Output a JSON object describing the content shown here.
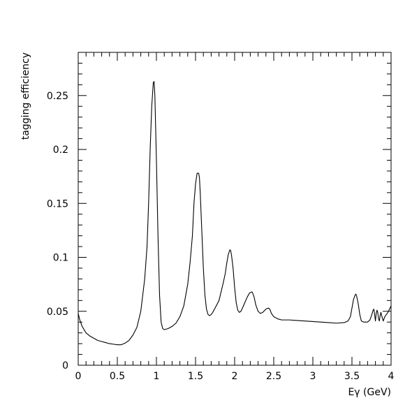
{
  "chart_data": {
    "type": "line",
    "title": "",
    "xlabel": "Eγ (GeV)",
    "ylabel": "tagging efficiency",
    "xlim": [
      0,
      4
    ],
    "ylim": [
      0,
      0.29
    ],
    "grid": false,
    "x_ticks": [
      0,
      0.5,
      1,
      1.5,
      2,
      2.5,
      3,
      3.5,
      4
    ],
    "x_tick_labels": [
      "0",
      "0.5",
      "1",
      "1.5",
      "2",
      "2.5",
      "3",
      "3.5",
      "4"
    ],
    "y_ticks": [
      0,
      0.05,
      0.1,
      0.15,
      0.2,
      0.25
    ],
    "y_tick_labels": [
      "0",
      "0.05",
      "0.1",
      "0.15",
      "0.2",
      "0.25"
    ],
    "series": [
      {
        "name": "",
        "x": [
          0.0,
          0.02,
          0.05,
          0.1,
          0.15,
          0.2,
          0.25,
          0.3,
          0.35,
          0.4,
          0.45,
          0.5,
          0.55,
          0.6,
          0.65,
          0.7,
          0.75,
          0.8,
          0.85,
          0.88,
          0.9,
          0.92,
          0.94,
          0.96,
          0.97,
          0.98,
          1.0,
          1.02,
          1.04,
          1.06,
          1.08,
          1.1,
          1.15,
          1.2,
          1.25,
          1.3,
          1.35,
          1.4,
          1.43,
          1.46,
          1.48,
          1.5,
          1.52,
          1.54,
          1.55,
          1.56,
          1.58,
          1.6,
          1.62,
          1.64,
          1.66,
          1.68,
          1.7,
          1.72,
          1.75,
          1.8,
          1.85,
          1.88,
          1.9,
          1.92,
          1.94,
          1.95,
          1.96,
          1.98,
          2.0,
          2.02,
          2.04,
          2.06,
          2.08,
          2.1,
          2.13,
          2.16,
          2.19,
          2.22,
          2.23,
          2.25,
          2.27,
          2.3,
          2.33,
          2.36,
          2.4,
          2.43,
          2.45,
          2.47,
          2.5,
          2.55,
          2.6,
          2.7,
          2.8,
          2.9,
          3.0,
          3.1,
          3.2,
          3.3,
          3.4,
          3.45,
          3.48,
          3.5,
          3.52,
          3.54,
          3.55,
          3.56,
          3.58,
          3.6,
          3.62,
          3.65,
          3.7,
          3.73,
          3.75,
          3.77,
          3.78,
          3.79,
          3.8,
          3.81,
          3.82,
          3.83,
          3.84,
          3.85,
          3.86,
          3.87,
          3.88,
          3.9,
          3.92,
          3.94,
          3.96,
          3.98,
          4.0
        ],
        "y": [
          0.048,
          0.042,
          0.036,
          0.03,
          0.027,
          0.025,
          0.023,
          0.022,
          0.021,
          0.02,
          0.0195,
          0.019,
          0.019,
          0.0205,
          0.023,
          0.028,
          0.035,
          0.05,
          0.08,
          0.11,
          0.15,
          0.2,
          0.24,
          0.262,
          0.263,
          0.25,
          0.19,
          0.12,
          0.065,
          0.04,
          0.034,
          0.033,
          0.034,
          0.036,
          0.039,
          0.045,
          0.055,
          0.075,
          0.095,
          0.12,
          0.15,
          0.168,
          0.178,
          0.178,
          0.174,
          0.16,
          0.125,
          0.09,
          0.065,
          0.052,
          0.047,
          0.046,
          0.047,
          0.049,
          0.053,
          0.06,
          0.075,
          0.085,
          0.095,
          0.103,
          0.107,
          0.106,
          0.102,
          0.09,
          0.072,
          0.058,
          0.051,
          0.049,
          0.05,
          0.053,
          0.058,
          0.063,
          0.067,
          0.068,
          0.067,
          0.063,
          0.056,
          0.05,
          0.048,
          0.049,
          0.052,
          0.053,
          0.052,
          0.048,
          0.045,
          0.043,
          0.042,
          0.042,
          0.0415,
          0.041,
          0.0405,
          0.04,
          0.0395,
          0.039,
          0.0395,
          0.041,
          0.045,
          0.053,
          0.061,
          0.065,
          0.066,
          0.064,
          0.057,
          0.047,
          0.041,
          0.04,
          0.04,
          0.042,
          0.046,
          0.051,
          0.052,
          0.047,
          0.041,
          0.048,
          0.051,
          0.049,
          0.043,
          0.041,
          0.046,
          0.049,
          0.046,
          0.041,
          0.045,
          0.047,
          0.049,
          0.052,
          0.055
        ]
      }
    ]
  }
}
